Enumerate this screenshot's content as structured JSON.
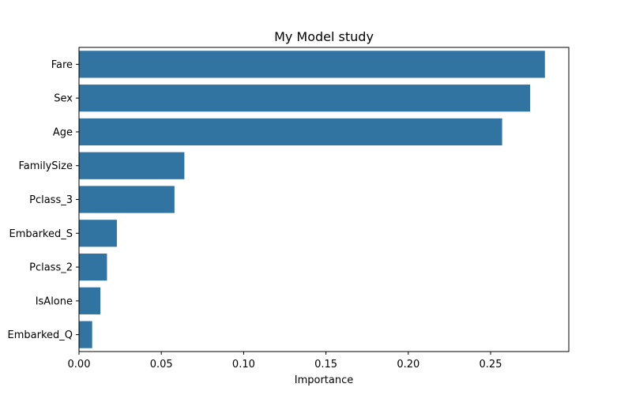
{
  "chart_data": {
    "type": "bar",
    "orientation": "horizontal",
    "title": "My Model study",
    "xlabel": "Importance",
    "ylabel": "",
    "categories": [
      "Fare",
      "Sex",
      "Age",
      "FamilySize",
      "Pclass_3",
      "Embarked_S",
      "Pclass_2",
      "IsAlone",
      "Embarked_Q"
    ],
    "values": [
      0.283,
      0.274,
      0.257,
      0.064,
      0.058,
      0.023,
      0.017,
      0.013,
      0.008
    ],
    "xlim": [
      0,
      0.2975
    ],
    "xticks": [
      "0.00",
      "0.05",
      "0.10",
      "0.15",
      "0.20",
      "0.25"
    ],
    "grid": false,
    "bar_color": "#3274a1"
  }
}
